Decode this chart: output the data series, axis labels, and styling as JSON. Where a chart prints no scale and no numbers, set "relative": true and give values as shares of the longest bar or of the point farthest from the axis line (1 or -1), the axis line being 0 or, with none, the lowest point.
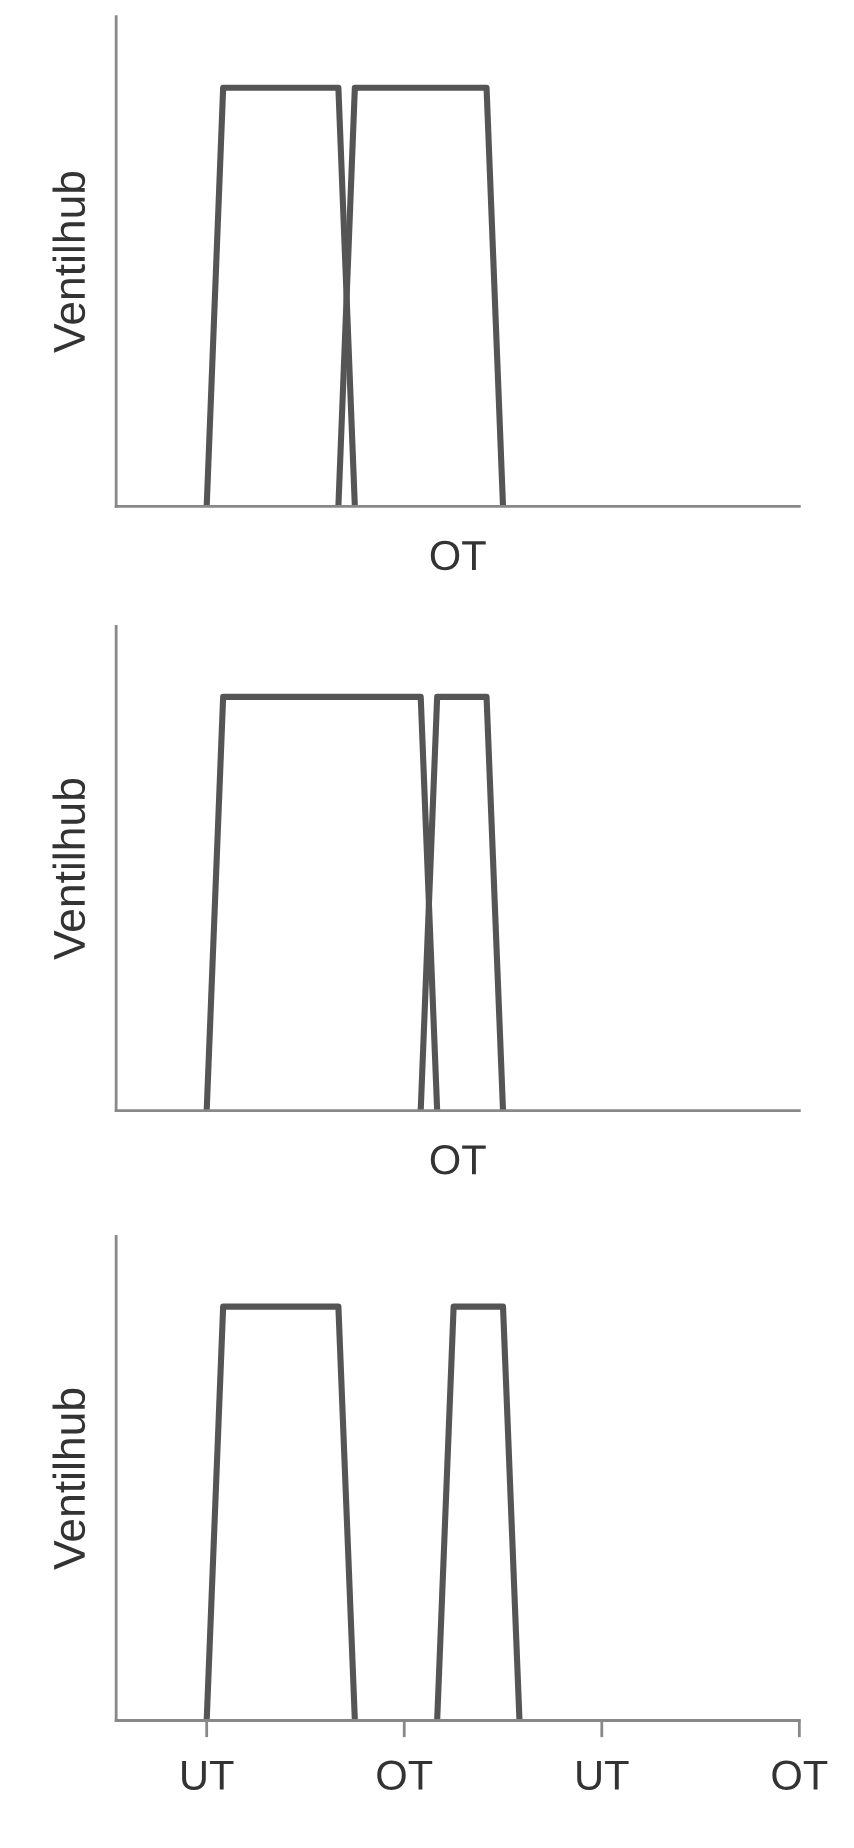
{
  "chart_data": [
    {
      "type": "line",
      "relative": true,
      "ylabel": "Ventilhub",
      "xlabel": "OT",
      "marker": "none",
      "line_style": "solid",
      "categories": [
        null,
        null,
        null,
        null,
        null,
        null,
        null,
        null,
        null,
        null,
        null,
        null,
        null,
        null,
        null,
        null,
        null,
        null,
        null,
        null,
        null,
        null,
        null,
        null,
        null,
        null,
        null,
        null,
        null,
        null,
        null,
        null,
        null,
        null,
        null,
        null,
        null,
        null,
        null,
        null,
        null,
        null
      ],
      "series": [
        {
          "color": "#555555",
          "values": [
            null,
            null,
            null,
            null,
            null,
            0,
            1,
            1,
            1,
            1,
            1,
            1,
            1,
            1,
            0,
            null,
            null,
            null,
            null,
            null,
            null,
            null,
            null,
            null,
            null,
            null,
            null,
            null,
            null,
            null,
            null,
            null,
            null,
            null,
            null,
            null,
            null,
            null,
            null,
            null,
            null,
            null
          ]
        },
        {
          "color": "#555555",
          "values": [
            null,
            null,
            null,
            null,
            null,
            null,
            null,
            null,
            null,
            null,
            null,
            null,
            null,
            0,
            1,
            1,
            1,
            1,
            1,
            1,
            1,
            1,
            1,
            0,
            null,
            null,
            null,
            null,
            null,
            null,
            null,
            null,
            null,
            null,
            null,
            null,
            null,
            null,
            null,
            null,
            null,
            null
          ]
        }
      ]
    },
    {
      "type": "line",
      "relative": true,
      "ylabel": "Ventilhub",
      "xlabel": "OT",
      "marker": "none",
      "line_style": "solid",
      "categories": [
        null,
        null,
        null,
        null,
        null,
        null,
        null,
        null,
        null,
        null,
        null,
        null,
        null,
        null,
        null,
        null,
        null,
        null,
        null,
        null,
        null,
        null,
        null,
        null,
        null,
        null,
        null,
        null,
        null,
        null,
        null,
        null,
        null,
        null,
        null,
        null,
        null,
        null,
        null,
        null,
        null,
        null
      ],
      "series": [
        {
          "color": "#555555",
          "values": [
            null,
            null,
            null,
            null,
            null,
            0,
            1,
            1,
            1,
            1,
            1,
            1,
            1,
            1,
            1,
            1,
            1,
            1,
            1,
            0,
            null,
            null,
            null,
            null,
            null,
            null,
            null,
            null,
            null,
            null,
            null,
            null,
            null,
            null,
            null,
            null,
            null,
            null,
            null,
            null,
            null,
            null
          ]
        },
        {
          "color": "#555555",
          "values": [
            null,
            null,
            null,
            null,
            null,
            null,
            null,
            null,
            null,
            null,
            null,
            null,
            null,
            null,
            null,
            null,
            null,
            null,
            0,
            1,
            1,
            1,
            1,
            0,
            null,
            null,
            null,
            null,
            null,
            null,
            null,
            null,
            null,
            null,
            null,
            null,
            null,
            null,
            null,
            null,
            null,
            null
          ]
        }
      ]
    },
    {
      "type": "line",
      "relative": true,
      "ylabel": "Ventilhub",
      "marker": "none",
      "line_style": "solid",
      "categories": [
        null,
        null,
        null,
        null,
        null,
        "UT",
        null,
        null,
        null,
        null,
        null,
        null,
        null,
        null,
        null,
        null,
        null,
        "OT",
        null,
        null,
        null,
        null,
        null,
        null,
        null,
        null,
        null,
        null,
        null,
        "UT",
        null,
        null,
        null,
        null,
        null,
        null,
        null,
        null,
        null,
        null,
        null,
        "OT"
      ],
      "series": [
        {
          "color": "#555555",
          "values": [
            null,
            null,
            null,
            null,
            null,
            0,
            1,
            1,
            1,
            1,
            1,
            1,
            1,
            1,
            0,
            null,
            null,
            null,
            null,
            null,
            null,
            null,
            null,
            null,
            null,
            null,
            null,
            null,
            null,
            null,
            null,
            null,
            null,
            null,
            null,
            null,
            null,
            null,
            null,
            null,
            null,
            null
          ]
        },
        {
          "color": "#555555",
          "values": [
            null,
            null,
            null,
            null,
            null,
            null,
            null,
            null,
            null,
            null,
            null,
            null,
            null,
            null,
            null,
            null,
            null,
            null,
            null,
            0,
            1,
            1,
            1,
            1,
            0,
            null,
            null,
            null,
            null,
            null,
            null,
            null,
            null,
            null,
            null,
            null,
            null,
            null,
            null,
            null,
            null,
            null
          ]
        }
      ]
    }
  ]
}
